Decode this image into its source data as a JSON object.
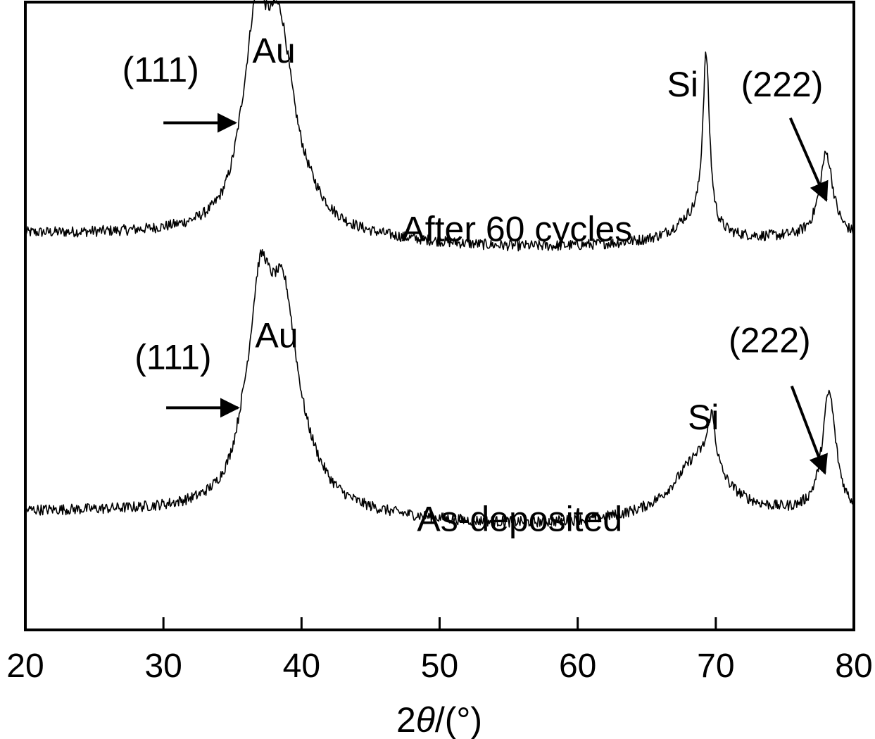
{
  "chart_data": {
    "type": "line",
    "title": "",
    "xlabel_prefix": "2",
    "xlabel_symbol": "θ",
    "xlabel_suffix": "/(°)",
    "ylabel": "",
    "xlim": [
      20,
      80
    ],
    "xticks": [
      20,
      30,
      40,
      50,
      60,
      70,
      80
    ],
    "xtick_labels": [
      "20",
      "30",
      "40",
      "50",
      "60",
      "70",
      "80"
    ],
    "yticks": "none",
    "grid": false,
    "legend": "none",
    "series": [
      {
        "name": "After 60 cycles",
        "offset": 1.15,
        "peaks": [
          {
            "pos": 36.7,
            "height": 0.7,
            "width": 1.0
          },
          {
            "pos": 38.4,
            "height": 0.75,
            "width": 1.3
          },
          {
            "pos": 35.6,
            "height": 0.07,
            "width": 0.7
          },
          {
            "pos": 40.5,
            "height": 0.05,
            "width": 1.5
          },
          {
            "pos": 69.3,
            "height": 0.72,
            "width": 0.3
          },
          {
            "pos": 68.2,
            "height": 0.08,
            "width": 1.5
          },
          {
            "pos": 78.0,
            "height": 0.35,
            "width": 0.6
          }
        ]
      },
      {
        "name": "As-deposited",
        "offset": 0.0,
        "peaks": [
          {
            "pos": 37.0,
            "height": 0.75,
            "width": 1.0
          },
          {
            "pos": 38.7,
            "height": 0.78,
            "width": 1.3
          },
          {
            "pos": 35.7,
            "height": 0.08,
            "width": 0.7
          },
          {
            "pos": 40.7,
            "height": 0.05,
            "width": 1.5
          },
          {
            "pos": 69.7,
            "height": 0.22,
            "width": 0.35
          },
          {
            "pos": 68.8,
            "height": 0.25,
            "width": 2.2
          },
          {
            "pos": 78.2,
            "height": 0.5,
            "width": 0.6
          }
        ]
      }
    ],
    "annotations": [
      {
        "text": "(111)",
        "x": 29.8,
        "y": 2.02,
        "arrow": {
          "from": [
            30.0,
            1.85
          ],
          "to": [
            35.2,
            1.85
          ]
        }
      },
      {
        "text": "Au",
        "x": 38.0,
        "y": 2.1
      },
      {
        "text": "Si",
        "x": 67.6,
        "y": 1.96
      },
      {
        "text": "(222)",
        "x": 74.8,
        "y": 1.96,
        "arrow": {
          "from": [
            75.4,
            1.87
          ],
          "to": [
            78.0,
            1.53
          ]
        }
      },
      {
        "text": "After 60 cycles",
        "x": 55.6,
        "y": 1.36
      },
      {
        "text": "(111)",
        "x": 30.7,
        "y": 0.83,
        "arrow": {
          "from": [
            30.2,
            0.67
          ],
          "to": [
            35.4,
            0.67
          ]
        }
      },
      {
        "text": "Au",
        "x": 38.2,
        "y": 0.92
      },
      {
        "text": "Si",
        "x": 69.1,
        "y": 0.58
      },
      {
        "text": "(222)",
        "x": 73.9,
        "y": 0.9,
        "arrow": {
          "from": [
            75.5,
            0.76
          ],
          "to": [
            77.9,
            0.4
          ]
        }
      },
      {
        "text": "As-deposited",
        "x": 55.8,
        "y": 0.16
      }
    ]
  }
}
